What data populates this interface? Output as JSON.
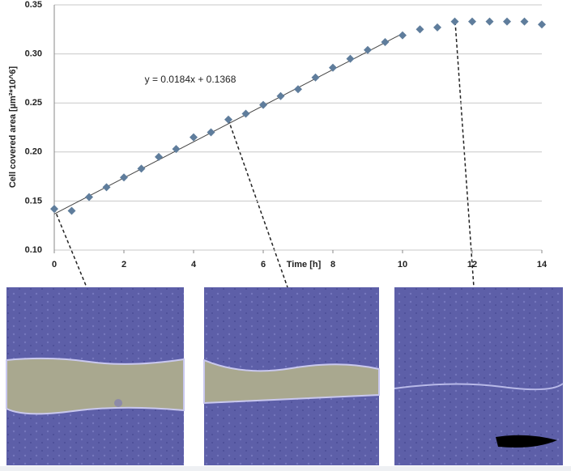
{
  "chart_data": {
    "type": "scatter",
    "x_label": "Time [h]",
    "y_label": "Cell covered area [µm²*10^6]",
    "x": [
      0,
      0.5,
      1,
      1.5,
      2,
      2.5,
      3,
      3.5,
      4,
      4.5,
      5,
      5.5,
      6,
      6.5,
      7,
      7.5,
      8,
      8.5,
      9,
      9.5,
      10,
      10.5,
      11,
      11.5,
      12,
      12.5,
      13,
      13.5,
      14
    ],
    "values": [
      0.142,
      0.14,
      0.154,
      0.164,
      0.174,
      0.183,
      0.195,
      0.203,
      0.215,
      0.22,
      0.233,
      0.239,
      0.248,
      0.257,
      0.264,
      0.276,
      0.286,
      0.295,
      0.304,
      0.312,
      0.319,
      0.325,
      0.327,
      0.333,
      0.333,
      0.333,
      0.333,
      0.333,
      0.33
    ],
    "color": "#5f7d9c",
    "trendline": {
      "label": "y = 0.0184x + 0.1368",
      "slope": 0.0184,
      "intercept": 0.1368,
      "xlim": [
        0,
        10
      ]
    },
    "xlim": [
      0,
      14
    ],
    "xticks": [
      0,
      2,
      4,
      6,
      8,
      10,
      12,
      14
    ],
    "ylim": [
      0.1,
      0.35
    ],
    "yticks": [
      {
        "value": 0.1,
        "label": "0.10"
      },
      0.15,
      {
        "value": 0.2,
        "label": "0.20"
      },
      0.25,
      {
        "value": 0.3,
        "label": "0.30"
      },
      0.35
    ],
    "grid": true
  }
}
